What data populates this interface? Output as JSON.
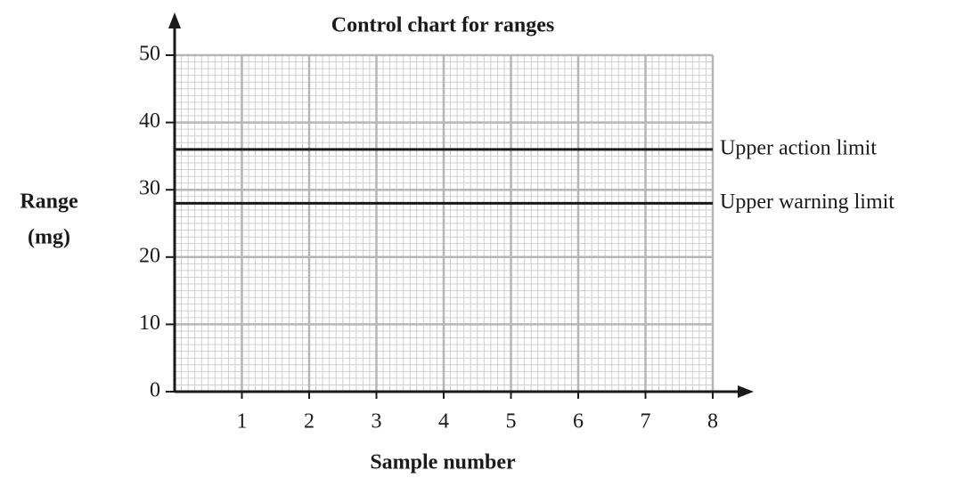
{
  "chart_data": {
    "type": "line",
    "title": "Control chart for ranges",
    "xlabel": "Sample number",
    "ylabel": [
      "Range",
      "(mg)"
    ],
    "xlim": [
      0,
      8
    ],
    "xticks": [
      1,
      2,
      3,
      4,
      5,
      6,
      7,
      8
    ],
    "ylim": [
      0,
      50
    ],
    "yticks": [
      0,
      10,
      20,
      30,
      40,
      50
    ],
    "grid": true,
    "series": [
      {
        "name": "Upper action limit",
        "color": "#1a1a1a",
        "x": [
          0,
          8
        ],
        "values": [
          36,
          36
        ]
      },
      {
        "name": "Upper warning limit",
        "color": "#1a1a1a",
        "x": [
          0,
          8
        ],
        "values": [
          28,
          28
        ]
      }
    ]
  }
}
